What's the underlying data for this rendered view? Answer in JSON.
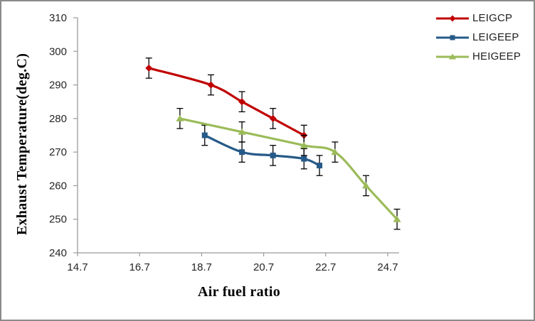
{
  "frame": {
    "background": "#ffffff",
    "border_color": "#8a8a8a"
  },
  "chart_data": {
    "type": "line",
    "title": "",
    "xlabel": "Air fuel ratio",
    "ylabel": "Exhaust Temperature(deg.C)",
    "xlim": [
      14.7,
      24.7
    ],
    "ylim": [
      240,
      310
    ],
    "x_ticks": [
      14.7,
      16.7,
      18.7,
      20.7,
      22.7,
      24.7
    ],
    "y_ticks": [
      240,
      250,
      260,
      270,
      280,
      290,
      300,
      310
    ],
    "grid": false,
    "legend_position": "top-right",
    "error_bar_plus_minus": 3,
    "axis_color": "#9b9b9b",
    "error_bar_color": "#000000",
    "tick_text_color": "#262626",
    "series": [
      {
        "name": "LEIGCP",
        "color": "#c00000",
        "marker": "diamond",
        "smoothed": true,
        "points": [
          [
            17.0,
            295
          ],
          [
            19.0,
            290
          ],
          [
            20.0,
            285
          ],
          [
            21.0,
            280
          ],
          [
            22.0,
            275
          ]
        ]
      },
      {
        "name": "LEIGEEP",
        "color": "#265a88",
        "marker": "square",
        "smoothed": true,
        "points": [
          [
            18.8,
            275
          ],
          [
            20.0,
            270
          ],
          [
            21.0,
            269
          ],
          [
            22.0,
            268
          ],
          [
            22.5,
            266
          ]
        ]
      },
      {
        "name": "HEIGEEP",
        "color": "#9bbb59",
        "marker": "triangle",
        "smoothed": true,
        "points": [
          [
            18.0,
            280
          ],
          [
            20.0,
            276
          ],
          [
            22.0,
            272
          ],
          [
            23.0,
            270
          ],
          [
            24.0,
            260
          ],
          [
            25.0,
            250
          ]
        ]
      }
    ]
  }
}
